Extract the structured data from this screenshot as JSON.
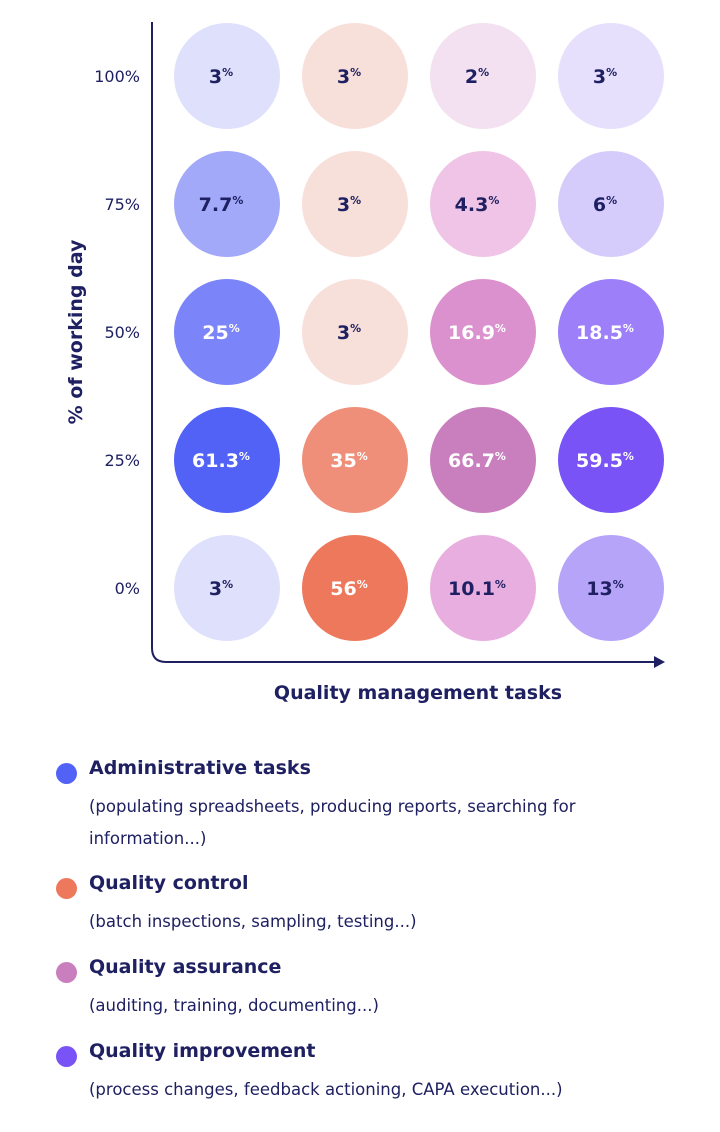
{
  "chart_data": {
    "type": "heatmap",
    "xlabel": "Quality management tasks",
    "ylabel": "% of working day",
    "y_ticks": [
      "100%",
      "75%",
      "50%",
      "25%",
      "0%"
    ],
    "columns": [
      "Administrative tasks",
      "Quality control",
      "Quality assurance",
      "Quality improvement"
    ],
    "unit": "%",
    "rows": [
      {
        "y": "100%",
        "values": [
          3,
          3,
          2,
          3
        ],
        "labels": [
          "3",
          "3",
          "2",
          "3"
        ],
        "colors": [
          "#dfe0fb",
          "#f8e0da",
          "#f3e0f0",
          "#e6e0fd"
        ]
      },
      {
        "y": "75%",
        "values": [
          7.7,
          3,
          4.3,
          6
        ],
        "labels": [
          "7.7",
          "3",
          "4.3",
          "6"
        ],
        "colors": [
          "#a3a9f9",
          "#f8e0da",
          "#efc4e6",
          "#d6ccfb"
        ]
      },
      {
        "y": "50%",
        "values": [
          25,
          3,
          16.9,
          18.5
        ],
        "labels": [
          "25",
          "3",
          "16.9",
          "18.5"
        ],
        "colors": [
          "#7b84f8",
          "#f8e0da",
          "#dc91cf",
          "#9c7ff9"
        ]
      },
      {
        "y": "25%",
        "values": [
          61.3,
          35,
          66.7,
          59.5
        ],
        "labels": [
          "61.3",
          "35",
          "66.7",
          "59.5"
        ],
        "colors": [
          "#5262f7",
          "#f08f79",
          "#c97fbd",
          "#7953f5"
        ]
      },
      {
        "y": "0%",
        "values": [
          3,
          56,
          10.1,
          13
        ],
        "labels": [
          "3",
          "56",
          "10.1",
          "13"
        ],
        "colors": [
          "#dfe0fb",
          "#ee785c",
          "#e9aee0",
          "#b6a4f8"
        ]
      }
    ],
    "text_colors": {
      "dark": "#1e2062",
      "light": "#ffffff"
    },
    "axis_color": "#1e2062"
  },
  "legend": [
    {
      "title": "Administrative tasks",
      "desc": "(populating spreadsheets, producing reports, searching for information...)",
      "color": "#5262f7"
    },
    {
      "title": "Quality control",
      "desc": "(batch inspections, sampling, testing...)",
      "color": "#ee785c"
    },
    {
      "title": "Quality assurance",
      "desc": "(auditing, training, documenting...)",
      "color": "#c97fbd"
    },
    {
      "title": "Quality improvement",
      "desc": "(process changes, feedback actioning, CAPA execution...)",
      "color": "#7953f5"
    }
  ]
}
